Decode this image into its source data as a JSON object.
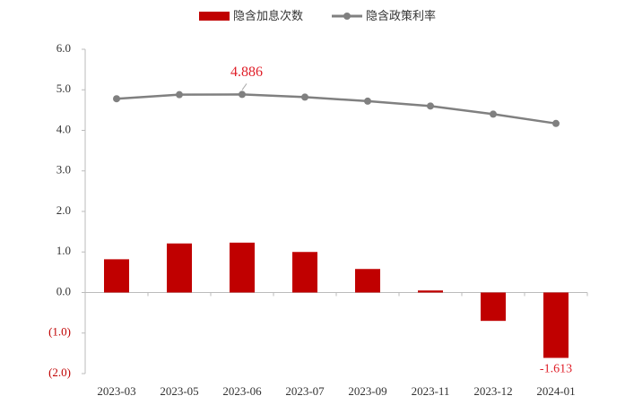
{
  "chart_data": {
    "type": "combo",
    "categories": [
      "2023-03",
      "2023-05",
      "2023-06",
      "2023-07",
      "2023-09",
      "2023-11",
      "2023-12",
      "2024-01"
    ],
    "series": [
      {
        "name": "隐含加息次数",
        "type": "bar",
        "color": "#c00000",
        "values": [
          0.82,
          1.21,
          1.23,
          1.0,
          0.58,
          0.05,
          -0.7,
          -1.613
        ],
        "value_labels": [
          null,
          null,
          null,
          null,
          null,
          null,
          null,
          "-1.613"
        ]
      },
      {
        "name": "隐含政策利率",
        "type": "line",
        "color": "#808080",
        "values": [
          4.78,
          4.88,
          4.886,
          4.82,
          4.72,
          4.6,
          4.4,
          4.17
        ],
        "value_labels": [
          null,
          null,
          "4.886",
          null,
          null,
          null,
          null,
          null
        ]
      }
    ],
    "ylim": [
      -2,
      6
    ],
    "yticks": [
      {
        "value": -2,
        "label": "(2.0)"
      },
      {
        "value": -1,
        "label": "(1.0)"
      },
      {
        "value": 0,
        "label": "0.0"
      },
      {
        "value": 1,
        "label": "1.0"
      },
      {
        "value": 2,
        "label": "2.0"
      },
      {
        "value": 3,
        "label": "3.0"
      },
      {
        "value": 4,
        "label": "4.0"
      },
      {
        "value": 5,
        "label": "5.0"
      },
      {
        "value": 6,
        "label": "6.0"
      }
    ],
    "negative_color": "#c00000",
    "label_color": "#e0202a",
    "grid": false,
    "legend": "top"
  }
}
